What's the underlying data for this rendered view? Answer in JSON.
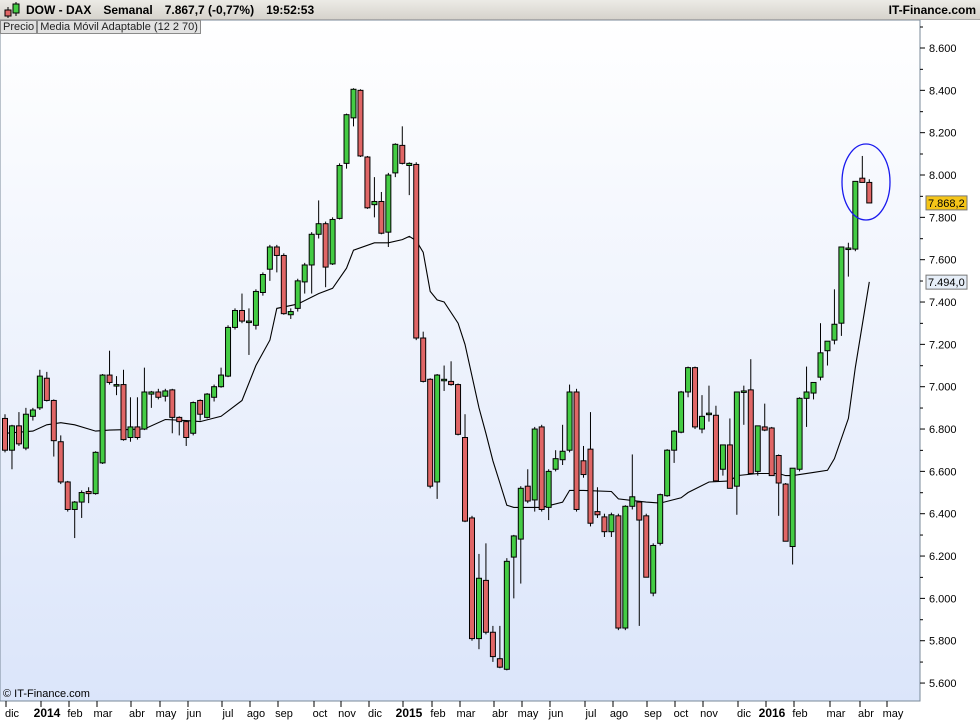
{
  "header": {
    "symbol": "DOW - DAX",
    "period": "Semanal",
    "quote": "7.867,7 (-0,77%)",
    "time": "19:52:53",
    "brand": "IT-Finance.com"
  },
  "legend": {
    "price": "Precio",
    "indicator": "Media Móvil Adaptable (12 2 70)"
  },
  "copyright": "© IT-Finance.com",
  "colors": {
    "up": "#44cc44",
    "down": "#e06666",
    "ma": "#000000",
    "circle": "#1a1aee",
    "last_price_tag": "#f5c518",
    "ma_tag": "#e6eef8",
    "background_top": "#ffffff",
    "background_bottom": "#dbe5fa"
  },
  "chart_data": {
    "type": "candlestick",
    "interval": "weekly",
    "ylim": [
      5550,
      8700
    ],
    "y_ticks": [
      "5.600",
      "5.800",
      "6.000",
      "6.200",
      "6.400",
      "6.600",
      "6.800",
      "7.000",
      "7.200",
      "7.400",
      "7.600",
      "7.800",
      "8.000",
      "8.200",
      "8.400",
      "8.600"
    ],
    "x_labels": [
      {
        "label": "dic",
        "year": false
      },
      {
        "label": "2014",
        "year": true
      },
      {
        "label": "feb",
        "year": false
      },
      {
        "label": "mar",
        "year": false
      },
      {
        "label": "abr",
        "year": false
      },
      {
        "label": "may",
        "year": false
      },
      {
        "label": "jun",
        "year": false
      },
      {
        "label": "jul",
        "year": false
      },
      {
        "label": "ago",
        "year": false
      },
      {
        "label": "sep",
        "year": false
      },
      {
        "label": "oct",
        "year": false
      },
      {
        "label": "nov",
        "year": false
      },
      {
        "label": "dic",
        "year": false
      },
      {
        "label": "2015",
        "year": true
      },
      {
        "label": "feb",
        "year": false
      },
      {
        "label": "mar",
        "year": false
      },
      {
        "label": "abr",
        "year": false
      },
      {
        "label": "may",
        "year": false
      },
      {
        "label": "jun",
        "year": false
      },
      {
        "label": "jul",
        "year": false
      },
      {
        "label": "ago",
        "year": false
      },
      {
        "label": "sep",
        "year": false
      },
      {
        "label": "oct",
        "year": false
      },
      {
        "label": "nov",
        "year": false
      },
      {
        "label": "dic",
        "year": false
      },
      {
        "label": "2016",
        "year": true
      },
      {
        "label": "feb",
        "year": false
      },
      {
        "label": "mar",
        "year": false
      },
      {
        "label": "abr",
        "year": false
      },
      {
        "label": "may",
        "year": false
      }
    ],
    "ohlc": [
      [
        6850,
        6870,
        6690,
        6700
      ],
      [
        6700,
        6820,
        6610,
        6815
      ],
      [
        6815,
        6880,
        6720,
        6730
      ],
      [
        6710,
        6900,
        6700,
        6870
      ],
      [
        6860,
        6900,
        6840,
        6890
      ],
      [
        6900,
        7080,
        6890,
        7050
      ],
      [
        7040,
        7070,
        6930,
        6935
      ],
      [
        6935,
        6940,
        6670,
        6745
      ],
      [
        6740,
        6770,
        6540,
        6550
      ],
      [
        6550,
        6555,
        6410,
        6420
      ],
      [
        6420,
        6460,
        6285,
        6455
      ],
      [
        6455,
        6510,
        6380,
        6500
      ],
      [
        6505,
        6525,
        6450,
        6495
      ],
      [
        6495,
        6695,
        6490,
        6690
      ],
      [
        6640,
        7060,
        6635,
        7055
      ],
      [
        7055,
        7170,
        7010,
        7020
      ],
      [
        7010,
        7050,
        6960,
        7010
      ],
      [
        7010,
        7080,
        6745,
        6750
      ],
      [
        6760,
        6950,
        6740,
        6810
      ],
      [
        6810,
        6950,
        6750,
        6760
      ],
      [
        6800,
        7090,
        6795,
        6975
      ],
      [
        6965,
        6980,
        6900,
        6975
      ],
      [
        6975,
        6990,
        6940,
        6950
      ],
      [
        6955,
        6990,
        6930,
        6980
      ],
      [
        6985,
        6990,
        6780,
        6855
      ],
      [
        6855,
        6860,
        6770,
        6835
      ],
      [
        6835,
        6840,
        6720,
        6760
      ],
      [
        6780,
        6930,
        6770,
        6925
      ],
      [
        6935,
        6940,
        6840,
        6870
      ],
      [
        6855,
        6970,
        6850,
        6965
      ],
      [
        6950,
        7010,
        6930,
        7000
      ],
      [
        7000,
        7090,
        6995,
        7055
      ],
      [
        7050,
        7290,
        7045,
        7280
      ],
      [
        7280,
        7370,
        7270,
        7360
      ],
      [
        7360,
        7440,
        7300,
        7310
      ],
      [
        7310,
        7370,
        7150,
        7310
      ],
      [
        7290,
        7460,
        7270,
        7450
      ],
      [
        7445,
        7540,
        7430,
        7530
      ],
      [
        7555,
        7670,
        7500,
        7660
      ],
      [
        7660,
        7670,
        7540,
        7620
      ],
      [
        7620,
        7630,
        7340,
        7345
      ],
      [
        7340,
        7370,
        7320,
        7355
      ],
      [
        7370,
        7510,
        7355,
        7500
      ],
      [
        7495,
        7585,
        7440,
        7575
      ],
      [
        7575,
        7730,
        7440,
        7720
      ],
      [
        7720,
        7880,
        7700,
        7770
      ],
      [
        7770,
        7780,
        7470,
        7565
      ],
      [
        7580,
        7800,
        7575,
        7790
      ],
      [
        7795,
        8055,
        7790,
        8045
      ],
      [
        8055,
        8290,
        8030,
        8285
      ],
      [
        8270,
        8410,
        8230,
        8405
      ],
      [
        8400,
        8405,
        8085,
        8090
      ],
      [
        8085,
        8090,
        7840,
        7845
      ],
      [
        7860,
        7990,
        7800,
        7875
      ],
      [
        7875,
        7920,
        7720,
        7725
      ],
      [
        7730,
        8010,
        7660,
        8000
      ],
      [
        8010,
        8150,
        7990,
        8145
      ],
      [
        8140,
        8230,
        8050,
        8055
      ],
      [
        8045,
        8060,
        7905,
        8055
      ],
      [
        8050,
        8060,
        7220,
        7230
      ],
      [
        7230,
        7260,
        7020,
        7025
      ],
      [
        7035,
        7040,
        6520,
        6530
      ],
      [
        6550,
        7060,
        6470,
        7055
      ],
      [
        7035,
        7100,
        6980,
        7035
      ],
      [
        7025,
        7120,
        7005,
        7010
      ],
      [
        7010,
        7015,
        6770,
        6775
      ],
      [
        6760,
        6870,
        6360,
        6365
      ],
      [
        6380,
        6390,
        5800,
        5810
      ],
      [
        5810,
        6210,
        5760,
        6095
      ],
      [
        6085,
        6260,
        5830,
        5840
      ],
      [
        5840,
        5870,
        5700,
        5725
      ],
      [
        5715,
        5870,
        5670,
        5675
      ],
      [
        5665,
        6190,
        5660,
        6175
      ],
      [
        6195,
        6300,
        6000,
        6295
      ],
      [
        6280,
        6530,
        6070,
        6520
      ],
      [
        6530,
        6610,
        6450,
        6460
      ],
      [
        6465,
        6810,
        6410,
        6800
      ],
      [
        6810,
        6820,
        6410,
        6420
      ],
      [
        6430,
        6610,
        6370,
        6600
      ],
      [
        6610,
        6700,
        6600,
        6660
      ],
      [
        6655,
        6820,
        6630,
        6695
      ],
      [
        6700,
        7010,
        6690,
        6975
      ],
      [
        6975,
        6990,
        6410,
        6420
      ],
      [
        6650,
        6720,
        6570,
        6585
      ],
      [
        6705,
        6880,
        6340,
        6355
      ],
      [
        6410,
        6525,
        6380,
        6395
      ],
      [
        6385,
        6400,
        6290,
        6315
      ],
      [
        6315,
        6405,
        6290,
        6395
      ],
      [
        6390,
        6400,
        5850,
        5860
      ],
      [
        5860,
        6440,
        5850,
        6435
      ],
      [
        6435,
        6680,
        6420,
        6480
      ],
      [
        6455,
        6460,
        5870,
        6370
      ],
      [
        6390,
        6400,
        6100,
        6100
      ],
      [
        6025,
        6260,
        6010,
        6250
      ],
      [
        6260,
        6495,
        6250,
        6490
      ],
      [
        6485,
        6705,
        6480,
        6700
      ],
      [
        6700,
        6795,
        6640,
        6790
      ],
      [
        6785,
        6980,
        6780,
        6975
      ],
      [
        6975,
        7095,
        6950,
        7090
      ],
      [
        7090,
        7095,
        6800,
        6810
      ],
      [
        6800,
        6960,
        6780,
        6860
      ],
      [
        6875,
        7005,
        6835,
        6875
      ],
      [
        6865,
        6910,
        6555,
        6555
      ],
      [
        6610,
        6725,
        6580,
        6725
      ],
      [
        6725,
        6850,
        6520,
        6520
      ],
      [
        6530,
        6975,
        6395,
        6975
      ],
      [
        6980,
        7005,
        6820,
        6980
      ],
      [
        6985,
        7130,
        6590,
        6590
      ],
      [
        6600,
        6815,
        6580,
        6815
      ],
      [
        6810,
        6920,
        6790,
        6795
      ],
      [
        6805,
        6810,
        6580,
        6580
      ],
      [
        6675,
        6680,
        6390,
        6545
      ],
      [
        6540,
        6545,
        6270,
        6270
      ],
      [
        6245,
        6615,
        6160,
        6615
      ],
      [
        6610,
        6950,
        6600,
        6945
      ],
      [
        6945,
        7095,
        6810,
        6975
      ],
      [
        6970,
        7020,
        6940,
        7020
      ],
      [
        7045,
        7300,
        7030,
        7160
      ],
      [
        7170,
        7215,
        7100,
        7215
      ],
      [
        7220,
        7460,
        7200,
        7295
      ],
      [
        7300,
        7660,
        7240,
        7660
      ],
      [
        7655,
        7680,
        7520,
        7655
      ],
      [
        7650,
        7970,
        7640,
        7970
      ],
      [
        7985,
        8090,
        7980,
        7965
      ],
      [
        7965,
        7980,
        7870,
        7868
      ]
    ],
    "moving_average": {
      "name": "Media Móvil Adaptable (12 2 70)",
      "points": [
        [
          0,
          6780
        ],
        [
          4,
          6790
        ],
        [
          6,
          6820
        ],
        [
          8,
          6830
        ],
        [
          10,
          6820
        ],
        [
          12,
          6800
        ],
        [
          13,
          6790
        ],
        [
          15,
          6795
        ],
        [
          20,
          6800
        ],
        [
          23,
          6845
        ],
        [
          26,
          6840
        ],
        [
          28,
          6835
        ],
        [
          31,
          6860
        ],
        [
          34,
          6935
        ],
        [
          36,
          7100
        ],
        [
          38,
          7220
        ],
        [
          39,
          7370
        ],
        [
          42,
          7390
        ],
        [
          45,
          7440
        ],
        [
          47,
          7465
        ],
        [
          49,
          7560
        ],
        [
          50,
          7645
        ],
        [
          53,
          7680
        ],
        [
          55,
          7680
        ],
        [
          57,
          7695
        ],
        [
          58,
          7710
        ],
        [
          59,
          7690
        ],
        [
          60,
          7635
        ],
        [
          61,
          7450
        ],
        [
          62,
          7410
        ],
        [
          63,
          7400
        ],
        [
          65,
          7300
        ],
        [
          66,
          7200
        ],
        [
          67,
          7050
        ],
        [
          68,
          6900
        ],
        [
          69,
          6780
        ],
        [
          70,
          6650
        ],
        [
          71,
          6545
        ],
        [
          72,
          6440
        ],
        [
          73,
          6430
        ],
        [
          77,
          6430
        ],
        [
          80,
          6455
        ],
        [
          81,
          6510
        ],
        [
          83,
          6510
        ],
        [
          87,
          6505
        ],
        [
          88,
          6470
        ],
        [
          92,
          6455
        ],
        [
          94,
          6450
        ],
        [
          97,
          6475
        ],
        [
          98,
          6500
        ],
        [
          101,
          6550
        ],
        [
          104,
          6555
        ],
        [
          105,
          6580
        ],
        [
          108,
          6590
        ],
        [
          111,
          6590
        ],
        [
          112,
          6580
        ],
        [
          113,
          6580
        ],
        [
          116,
          6595
        ],
        [
          118,
          6605
        ],
        [
          119,
          6660
        ],
        [
          121,
          6850
        ],
        [
          122,
          7090
        ],
        [
          124,
          7495
        ]
      ]
    },
    "last_price_label": "7.868,2",
    "ma_label": "7.494,0",
    "highlight": "circle around last two weekly candles"
  }
}
